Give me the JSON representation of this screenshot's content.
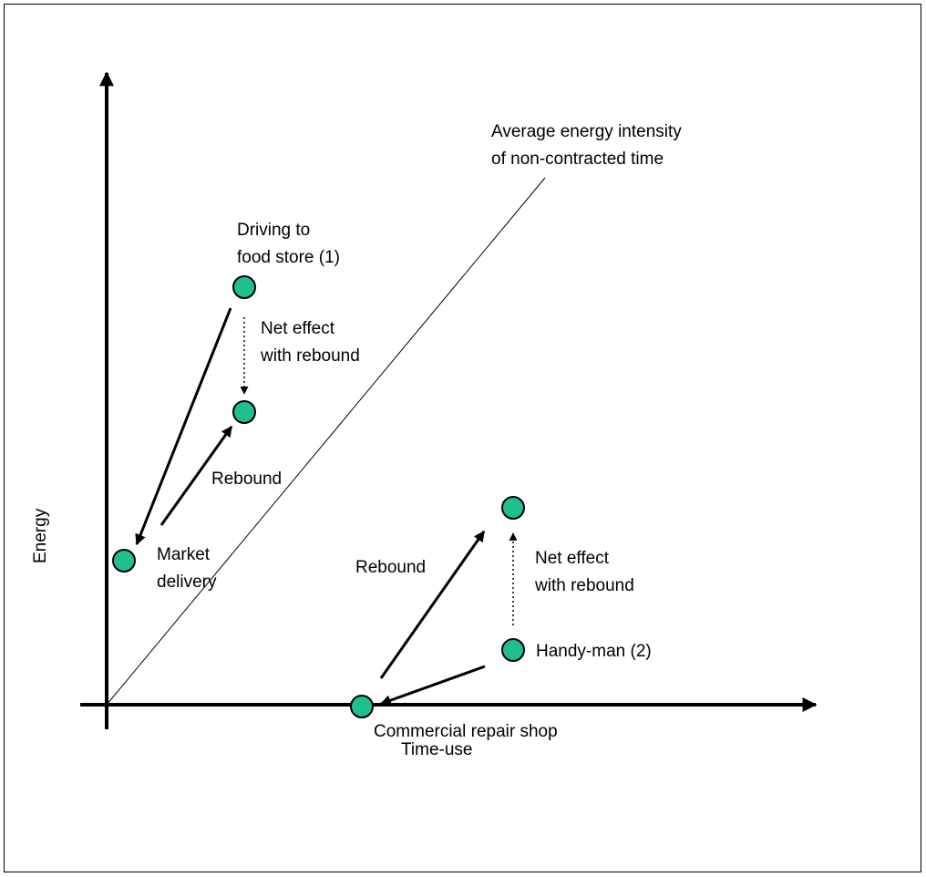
{
  "axes": {
    "x_label": "Time-use",
    "y_label": "Energy"
  },
  "reference_line": {
    "label_line1": "Average energy intensity",
    "label_line2": "of non-contracted time"
  },
  "nodes": {
    "driving": {
      "line1": "Driving to",
      "line2": "food store (1)"
    },
    "market_delivery": {
      "line1": "Market",
      "line2": "delivery"
    },
    "handyman": {
      "line1": "Handy-man (2)"
    },
    "repair_shop": {
      "line1": "Commercial repair shop"
    }
  },
  "annotations": {
    "net_effect_1": {
      "line1": "Net effect",
      "line2": "with rebound"
    },
    "rebound_1": "Rebound",
    "net_effect_2": {
      "line1": "Net effect",
      "line2": "with rebound"
    },
    "rebound_2": "Rebound"
  },
  "colors": {
    "node_fill": "#1fbf8f",
    "node_stroke": "#000000",
    "line": "#000000"
  }
}
